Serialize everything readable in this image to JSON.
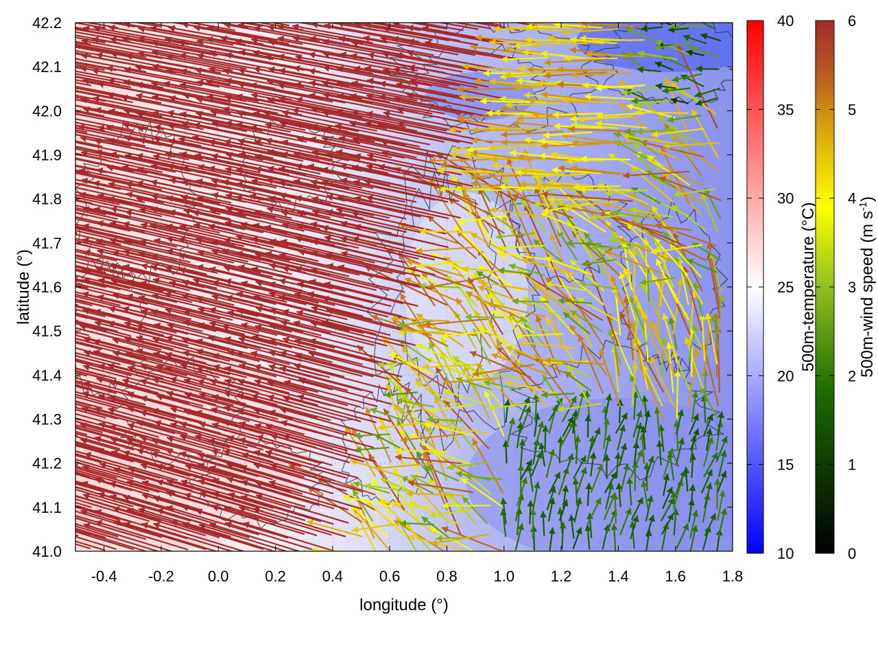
{
  "chart_data": {
    "type": "heatmap",
    "subtype": "wind-vector-field-over-temperature",
    "xlabel": "longitude (°)",
    "ylabel": "latitude (°)",
    "xlim": [
      -0.5,
      1.8
    ],
    "ylim": [
      41.0,
      42.2
    ],
    "x_ticks": [
      "-0.4",
      "-0.2",
      "0.0",
      "0.2",
      "0.4",
      "0.6",
      "0.8",
      "1.0",
      "1.2",
      "1.4",
      "1.6",
      "1.8"
    ],
    "y_ticks": [
      "41.0",
      "41.1",
      "41.2",
      "41.3",
      "41.4",
      "41.5",
      "41.6",
      "41.7",
      "41.8",
      "41.9",
      "42.0",
      "42.1",
      "42.2"
    ],
    "grid": true,
    "contours": true,
    "colorbars": [
      {
        "label": "500m-temperature (°C)",
        "range": [
          10,
          40
        ],
        "ticks": [
          "10",
          "15",
          "20",
          "25",
          "30",
          "35",
          "40"
        ],
        "colors": [
          "#0000ff",
          "#ffffff",
          "#ff0000"
        ]
      },
      {
        "label": "500m-wind speed (m s",
        "label_sup": "-1",
        "label_end": ")",
        "range": [
          0,
          6
        ],
        "ticks": [
          "0",
          "1",
          "2",
          "3",
          "4",
          "5",
          "6"
        ],
        "colors": [
          "#000000",
          "#1a6b00",
          "#8fbf20",
          "#ffff00",
          "#d9a010",
          "#b85a20",
          "#a52a2a"
        ]
      }
    ],
    "temperature_regions": [
      {
        "region": "west (lon < 0.4)",
        "temperature": 26
      },
      {
        "region": "centre (0.4-0.9)",
        "temperature": 22
      },
      {
        "region": "east (lon > 0.9)",
        "temperature": 18
      },
      {
        "region": "northeast corner",
        "temperature": 12
      }
    ],
    "wind_regions": [
      {
        "region": "west",
        "speed": 6,
        "direction_deg": 165
      },
      {
        "region": "north-centre",
        "speed": 4.5,
        "direction_deg": 175
      },
      {
        "region": "centre",
        "speed": 3,
        "direction_deg": 180
      },
      {
        "region": "southeast",
        "speed": 1.5,
        "direction_deg": 90
      }
    ]
  }
}
